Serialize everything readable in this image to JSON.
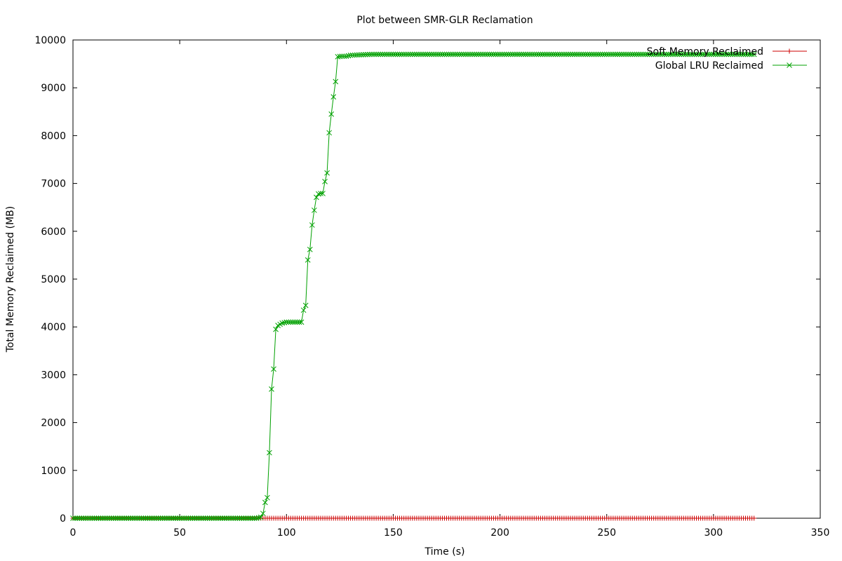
{
  "chart_data": {
    "type": "line",
    "title": "Plot between SMR-GLR Reclamation",
    "xlabel": "Time (s)",
    "ylabel": "Total Memory Reclaimed (MB)",
    "xlim": [
      0,
      350
    ],
    "ylim": [
      0,
      10000
    ],
    "xticks": [
      0,
      50,
      100,
      150,
      200,
      250,
      300,
      350
    ],
    "yticks": [
      0,
      1000,
      2000,
      3000,
      4000,
      5000,
      6000,
      7000,
      8000,
      9000,
      10000
    ],
    "grid": false,
    "legend_position": "top-right",
    "series": [
      {
        "name": "Soft Memory Reclaimed",
        "color": "#cc0000",
        "marker": "plus",
        "x": [
          0,
          10,
          20,
          30,
          40,
          50,
          60,
          70,
          80,
          90,
          100,
          110,
          120,
          130,
          140,
          150,
          160,
          170,
          180,
          190,
          200,
          210,
          220,
          230,
          240,
          250,
          260,
          270,
          280,
          290,
          300,
          310,
          319
        ],
        "y": [
          0,
          0,
          0,
          0,
          0,
          0,
          0,
          0,
          0,
          0,
          0,
          0,
          0,
          0,
          0,
          0,
          0,
          0,
          0,
          0,
          0,
          0,
          0,
          0,
          0,
          0,
          0,
          0,
          0,
          0,
          0,
          0,
          0
        ]
      },
      {
        "name": "Global LRU Reclaimed",
        "color": "#00a000",
        "marker": "cross",
        "x": [
          0,
          20,
          40,
          60,
          80,
          86,
          88,
          89,
          90,
          91,
          92,
          93,
          94,
          95,
          96,
          98,
          100,
          102,
          104,
          106,
          107,
          108,
          109,
          110,
          111,
          112,
          113,
          114,
          115,
          116,
          117,
          118,
          119,
          120,
          121,
          122,
          123,
          124,
          126,
          128,
          130,
          135,
          140,
          150,
          200,
          250,
          300,
          319
        ],
        "y": [
          0,
          0,
          0,
          0,
          0,
          0,
          20,
          100,
          330,
          430,
          1370,
          2700,
          3120,
          3950,
          4030,
          4080,
          4100,
          4100,
          4100,
          4100,
          4100,
          4350,
          4450,
          5400,
          5620,
          6130,
          6440,
          6710,
          6780,
          6790,
          6790,
          7040,
          7220,
          8060,
          8450,
          8810,
          9130,
          9650,
          9660,
          9660,
          9680,
          9690,
          9700,
          9700,
          9700,
          9700,
          9700,
          9700
        ]
      }
    ]
  }
}
